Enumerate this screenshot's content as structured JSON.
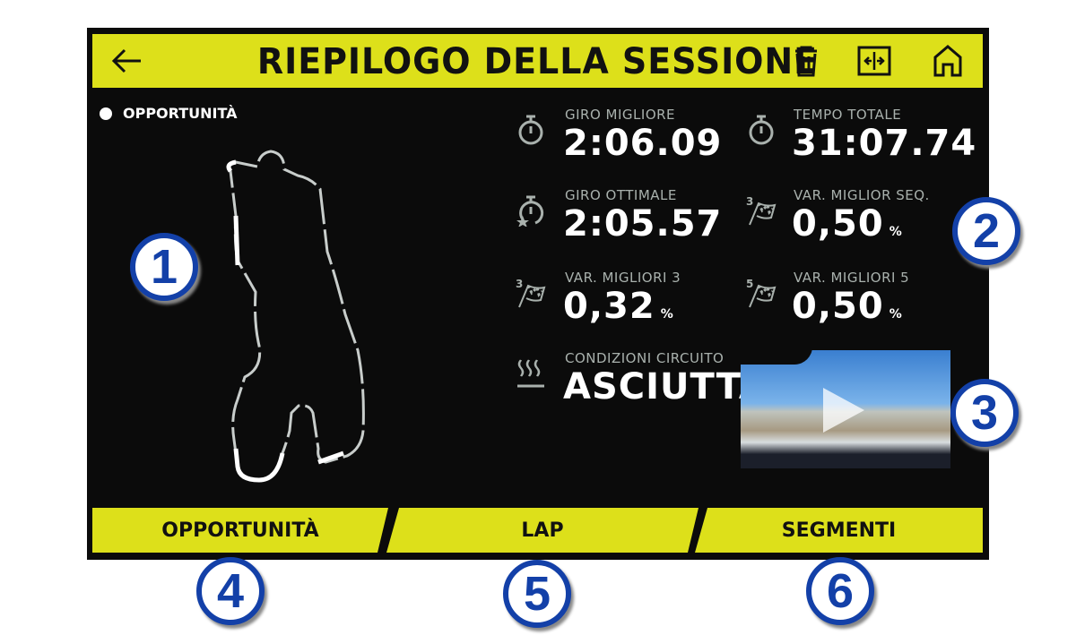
{
  "header": {
    "title": "RIEPILOGO DELLA SESSIONE",
    "icons": [
      "back-arrow-icon",
      "trash-icon",
      "split-view-icon",
      "home-icon"
    ]
  },
  "map": {
    "legend": "OPPORTUNITÀ"
  },
  "stats": [
    {
      "label": "GIRO MIGLIORE",
      "value": "2:06.09",
      "icon": "stopwatch-icon"
    },
    {
      "label": "TEMPO TOTALE",
      "value": "31:07.74",
      "icon": "stopwatch-icon"
    },
    {
      "label": "GIRO OTTIMALE",
      "value": "2:05.57",
      "icon": "stopwatch-star-icon"
    },
    {
      "label": "VAR. MIGLIOR SEQ.",
      "value": "0,50",
      "unit": "%",
      "icon": "checkered-flag-3-icon"
    },
    {
      "label": "VAR. MIGLIORI 3",
      "value": "0,32",
      "unit": "%",
      "icon": "checkered-flag-3-icon"
    },
    {
      "label": "VAR. MIGLIORI 5",
      "value": "0,50",
      "unit": "%",
      "icon": "checkered-flag-5-icon"
    },
    {
      "label": "CONDIZIONI CIRCUITO",
      "value": "ASCIUTTA",
      "icon": "heat-waves-icon"
    }
  ],
  "tabs": [
    "OPPORTUNITÀ",
    "LAP",
    "SEGMENTI"
  ],
  "callouts": [
    "1",
    "2",
    "3",
    "4",
    "5",
    "6"
  ],
  "colors": {
    "accent": "#dde01a",
    "callout": "#1340a8"
  }
}
